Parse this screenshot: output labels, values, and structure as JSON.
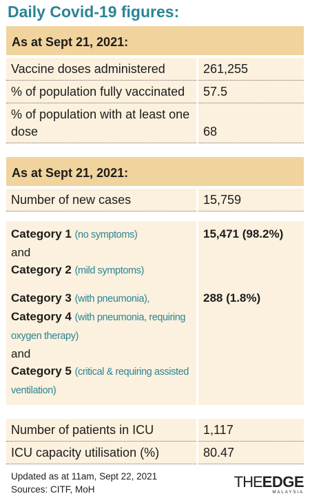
{
  "title": "Daily Covid-19 figures:",
  "sections": [
    {
      "header": "As at Sept 21, 2021:",
      "rows": [
        {
          "label": "Vaccine doses administered",
          "value": "261,255"
        },
        {
          "label": "% of population fully vaccinated",
          "value": "57.5"
        },
        {
          "label": "% of population with at least one dose",
          "value": "68"
        }
      ]
    },
    {
      "header": "As at Sept 21, 2021:",
      "rows": [
        {
          "label": "Number of new cases",
          "value": "15,759"
        }
      ]
    }
  ],
  "categories": [
    {
      "parts": [
        {
          "category": "Category 1",
          "note": "(no symptoms)"
        },
        {
          "text": "and"
        },
        {
          "category": "Category 2",
          "note": "(mild symptoms)"
        }
      ],
      "value": "15,471 (98.2%)"
    },
    {
      "parts": [
        {
          "category": "Category 3",
          "note": "(with pneumonia),"
        },
        {
          "category": "Category 4",
          "note": "(with pneumonia, requiring oxygen therapy)"
        },
        {
          "text": "and"
        },
        {
          "category": "Category 5",
          "note": "(critical & requiring assisted ventilation)"
        }
      ],
      "value": "288 (1.8%)"
    }
  ],
  "icu": [
    {
      "label": "Number of patients in ICU",
      "value": "1,117"
    },
    {
      "label": "ICU capacity utilisation (%)",
      "value": "80.47"
    }
  ],
  "footer": {
    "updated": "Updated as at 11am, Sept 22, 2021",
    "sources": "Sources: CITF, MoH",
    "logo_the": "THE",
    "logo_edge": "EDGE",
    "logo_sub": "MALAYSIA"
  }
}
